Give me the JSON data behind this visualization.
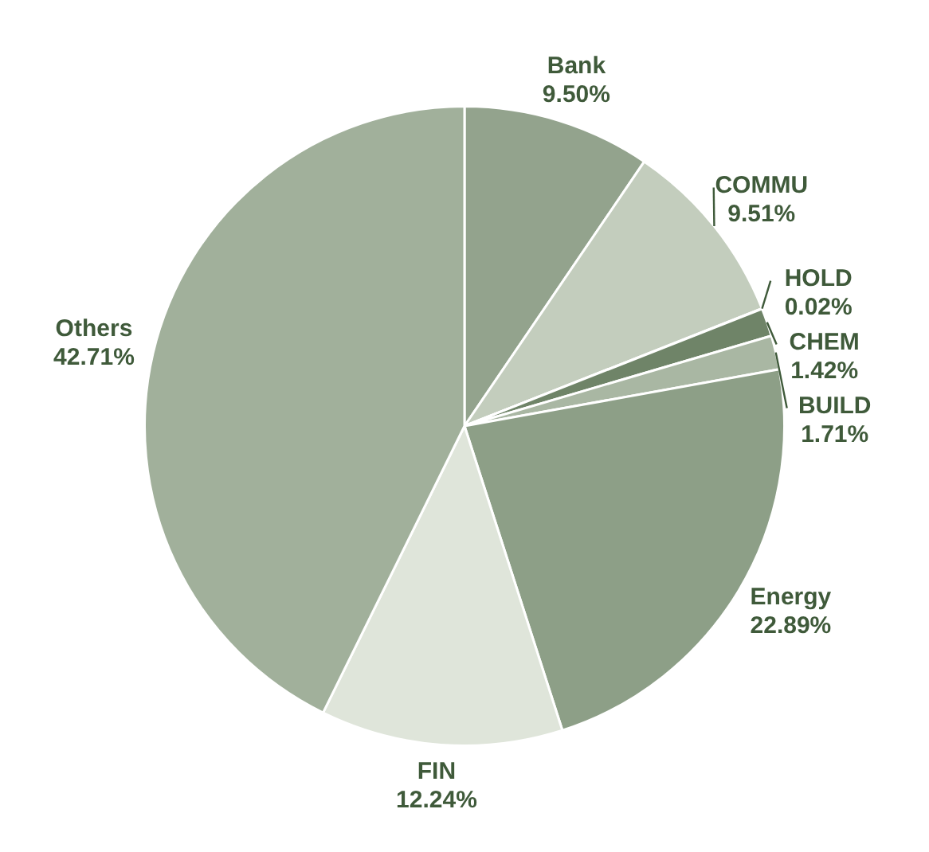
{
  "chart_data": {
    "type": "pie",
    "categories": [
      "Bank",
      "COMMU",
      "HOLD",
      "CHEM",
      "BUILD",
      "Energy",
      "FIN",
      "Others"
    ],
    "values": [
      9.5,
      9.51,
      0.02,
      1.42,
      1.71,
      22.89,
      12.24,
      42.71
    ],
    "value_labels": [
      "9.50%",
      "9.51%",
      "0.02%",
      "1.42%",
      "1.71%",
      "22.89%",
      "12.24%",
      "42.71%"
    ],
    "colors": [
      "#93a38d",
      "#c3cdbd",
      "#e8ece4",
      "#6f8468",
      "#a9b7a3",
      "#8d9f87",
      "#dfe5da",
      "#a1b09b"
    ],
    "legend": false
  }
}
